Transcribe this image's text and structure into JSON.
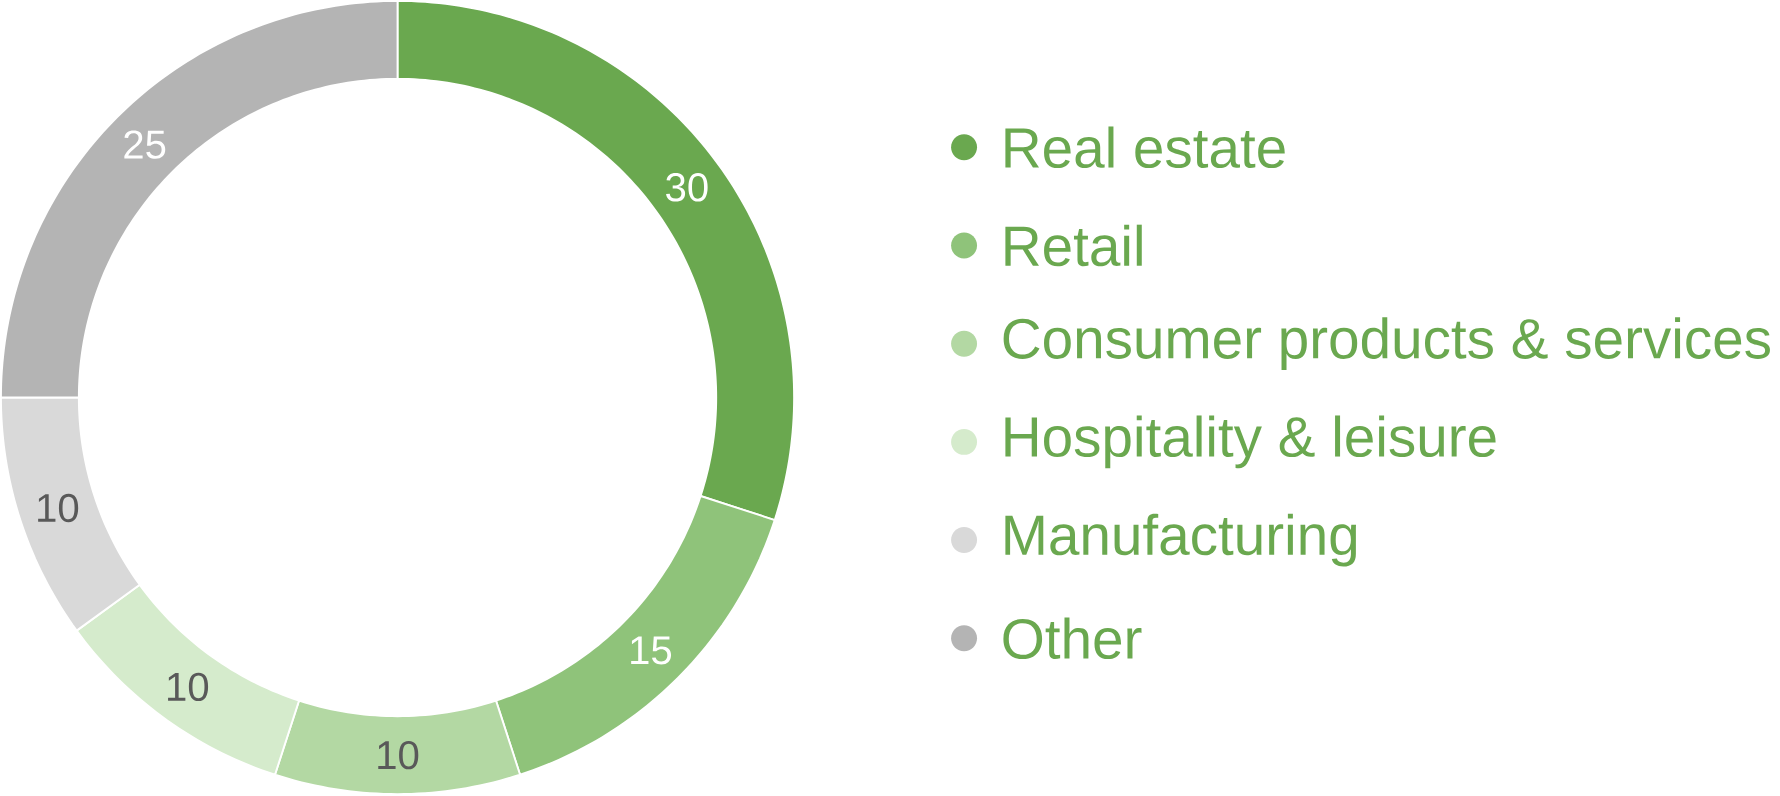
{
  "chart_data": {
    "type": "donut",
    "categories": [
      "Real estate",
      "Retail",
      "Consumer products & services",
      "Hospitality & leisure",
      "Manufacturing",
      "Other"
    ],
    "values": [
      30,
      15,
      10,
      10,
      10,
      25
    ],
    "colors": [
      "#6aa84f",
      "#8fc37a",
      "#b3d8a3",
      "#d5ebcc",
      "#d9d9d9",
      "#b4b4b4"
    ],
    "data_labels": true,
    "legend": "right"
  }
}
